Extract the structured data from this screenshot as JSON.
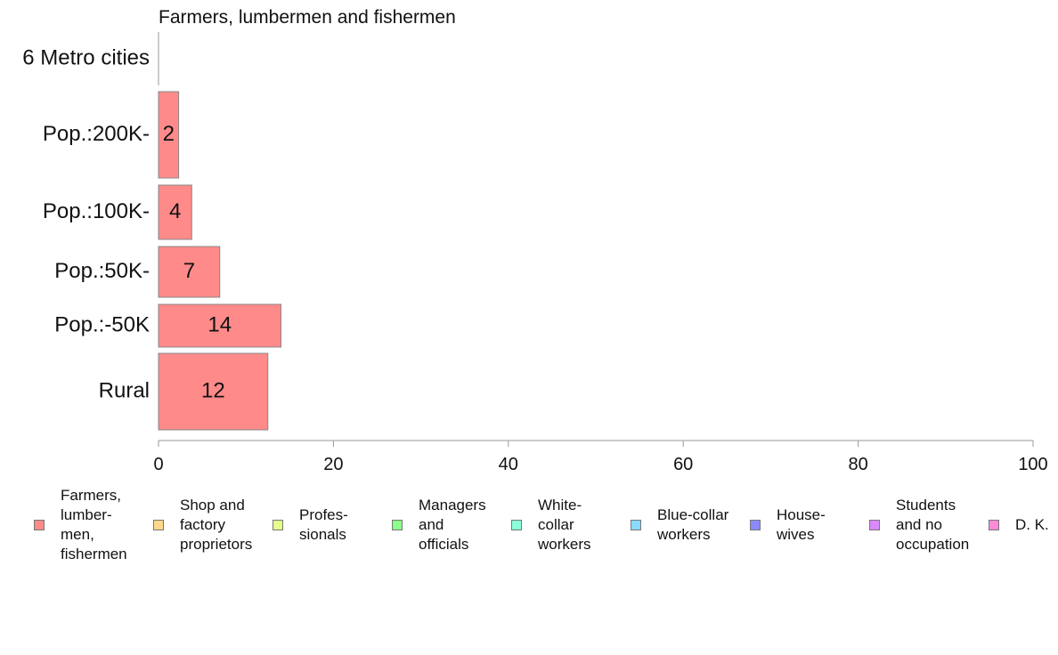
{
  "chart_data": {
    "type": "bar",
    "orientation": "horizontal",
    "title": "Farmers, lumbermen and fishermen",
    "categories": [
      "6 Metro cities",
      "Pop.:200K-",
      "Pop.:100K-",
      "Pop.:50K-",
      "Pop.:-50K",
      "Rural"
    ],
    "values": [
      0,
      2.3,
      3.8,
      7,
      14,
      12.5
    ],
    "value_labels": [
      "",
      "2",
      "4",
      "7",
      "14",
      "12"
    ],
    "xlim": [
      0,
      100
    ],
    "xticks": [
      "0",
      "20",
      "40",
      "60",
      "80",
      "100"
    ],
    "xlabel": "",
    "ylabel": "",
    "grid": false,
    "bar_color": "#ff8a8a",
    "legend_placement": "bottom",
    "legend": [
      {
        "label": "Farmers,\nlumber-\nmen,\nfishermen",
        "color": "#ff8a8a"
      },
      {
        "label": "Shop and\nfactory\nproprietors",
        "color": "#ffd98a"
      },
      {
        "label": "Profes-\nsionals",
        "color": "#e6ff8a"
      },
      {
        "label": "Managers\nand\nofficials",
        "color": "#8aff8a"
      },
      {
        "label": "White-\ncollar\nworkers",
        "color": "#8affd9"
      },
      {
        "label": "Blue-collar\nworkers",
        "color": "#8ad9ff"
      },
      {
        "label": "House-\nwives",
        "color": "#8a8aff"
      },
      {
        "label": "Students\nand no\noccupation",
        "color": "#d98aff"
      },
      {
        "label": "D. K.",
        "color": "#ff8ad9"
      }
    ]
  }
}
